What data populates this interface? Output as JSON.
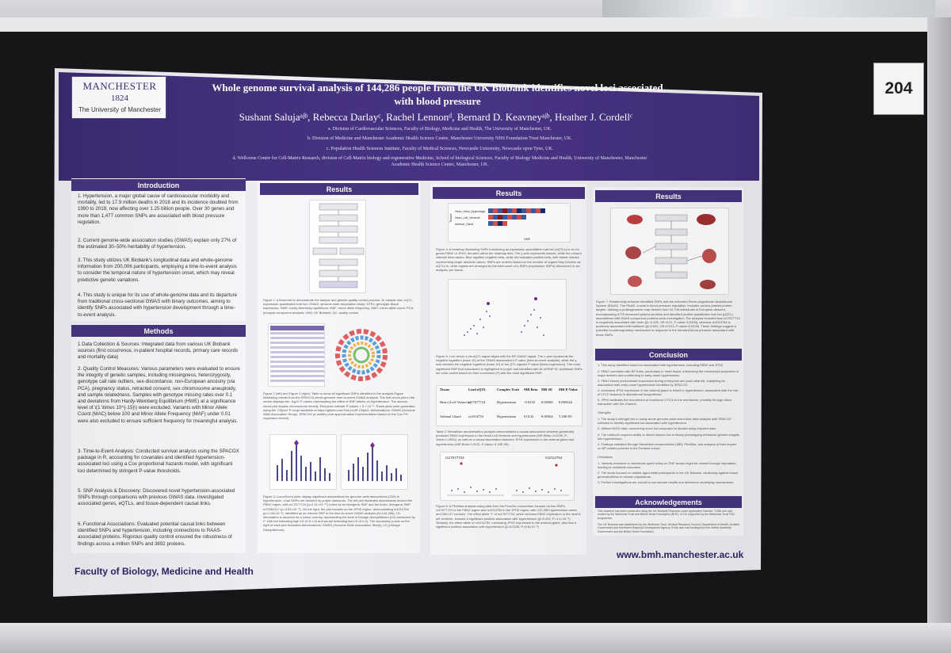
{
  "poster": {
    "logo_name": "MANCHESTER",
    "logo_year": "1824",
    "logo_university": "The University of Manchester",
    "title_line1": "Whole genome survival analysis of 144,286 people from the UK Biobank identifies novel loci associated",
    "title_line2": "with blood pressure",
    "authors": "Sushant Salujaᵃʲᵇ, Rebecca Darlayᶜ, Rachel Lennonᵈ, Bernard D. Keavneyᵃʲᵇ, Heather J. Cordellᶜ",
    "affiliations": [
      "a. Division of Cardiovascular Sciences, Faculty of Biology, Medicine and Health, The University of Manchester, UK.",
      "b. Division of Medicine and Manchester Academic Health Science Centre, Manchester University NHS Foundation Trust Manchester, UK.",
      "c. Population Health Sciences Institute, Faculty of Medical Sciences, Newcastle University, Newcastle upon Tyne, UK.",
      "d. Wellcome Centre for Cell-Matrix Research, division of Cell-Matrix biology and regenerative Medicine, School of biological Sciences, Faculty of Biology Medicine and Health, University of Manchester, Manchester",
      "Academic Health Science Centre, Manchester, UK."
    ],
    "footer": "Faculty of Biology, Medicine and Health",
    "url": "www.bmh.manchester.ac.uk"
  },
  "board_number": "204",
  "sections": {
    "introduction": {
      "heading": "Introduction",
      "paras": [
        "1. Hypertension, a major global cause of cardiovascular morbidity and mortality, led to 17.9 million deaths in 2018 and its incidence doubled from 1990 to 2019, now affecting over 1.25 billion people. Over 30 genes and more than 1,477 common SNPs are associated with blood pressure regulation.",
        "2. Current genome-wide association studies (GWAS) explain only 27% of the estimated 30–50% heritability of hypertension.",
        "3. This study utilizes UK Biobank's longitudinal data and whole-genome information from 200,006 participants, employing a time-to-event analysis to consider the temporal nature of hypertension onset, which may reveal predictive genetic variations.",
        "4. This study is unique for its use of whole-genome data and its departure from traditional cross-sectional GWAS with binary outcomes, aiming to identify SNPs associated with hypertension development through a time-to-event analysis."
      ]
    },
    "methods": {
      "heading": "Methods",
      "paras": [
        "1 Data Collection & Sources: Integrated data from various UK Biobank sources (first occurrence, in-patient hospital records, primary care records and mortality data)",
        "2. Quality Control Measures: Various parameters were evaluated to ensure the integrity of genetic samples, including missingness, heterozygosity, genotype call rate outliers, sex-discordance, non-European ancestry (via PCA), pregnancy status, retracted consent, sex chromosome aneuploidy, and sample relatedness. Samples with genotype missing rates over 0.1 and deviations from Hardy-Weinberg Equilibrium (HWE) at a significance level of \\(1 \\times 10^{-15}\\) were excluded. Variants with Minor Allele Count (MAC) below 100 and Minor Allele Frequency (MAF) under 0.01 were also excluded to ensure sufficient frequency for meaningful analysis.",
        "3. Time-to-Event Analysis: Conducted survival analysis using the SPACOX package in R, accounting for covariates and identified hypertension-associated loci using a Cox proportional hazards model, with significant loci determined by stringent P-value thresholds.",
        "5. SNP Analysis & Discovery: Discovered novel hypertension-associated SNPs through comparisons with previous GWAS data. Investigated associated genes, eQTLs, and tissue-dependent causal links.",
        "6. Functional Associations: Evaluated potential causal links between identified SNPs and hypertension, including connections to RAAS-associated proteins. Rigorous quality control ensured the robustness of findings across a million SNPs and 3892 proteins."
      ]
    },
    "results1": {
      "heading": "Results",
      "caption1": "Figure 1: A flowchart to demonstrate the sample and genetic quality control process. N: sample size; eQTL: expression quantitative trait loci; GWAS: genome-wide association study; GTEx: genotype-tissue expression; HWE: hardy-Weinberg equilibrium; MAF: minor allele frequency; MAC: minor allele count; PCA: principal component analysis; UKB: UK Biobank; QC: quality control.",
      "caption2": "Figure 2 (left) and Figure 2 (right): Table to show all significant SNPs identified in the analysis.Figure illustrating results from the SPACOX whole-genome time-to-event GWAS analysis. The first circos plot in the centre displays the -log10 P-values representing the effect of SNP alleles on hypertension. The second circos plot depicts chromosome density. Red plots indicate P-values < 5 × 10⁻⁸. These plots were generated using the 'CMplot' R script available at https://github.com/YinLiLin/R-CMplot. Abbreviations: GWAS (Genome Wide Association Study), SPACOX (a saddle point approximation implementation based on the Cox PH regression model).",
      "caption3": "Figure 3: LocusZoom plots display significant associations for genome-wide associations (GW) in hypertension. Lead SNPs are denoted by purple diamonds. The left plot illustrates associations around the FBN2 region, with rs17677724 (p=2.41×10⁻¹⁰) noted as an intergenic SNP and the index. Intergenic SNP rs73350117 (p=2.82×10⁻⁹). On the right, the plot focuses on the JPH2 region, demonstrating rs1014754 (p=1.28×10⁻⁸), identified as an intronic SNP in the time-to-event GWAS analysis (N=144,286). LD information is depicted as a colour overlay, representing the level of linkage disequilibrium (LD) measured by r², with red indicating high LD (0.8-1.0) and purple indicating low LD (0-0.2). The secondary y-axis on the right of each plot illustrates Abbreviations: GWAS (Genome Wide Association Study), LD (Linkage Disequilibrium)."
    },
    "results2": {
      "heading": "Results",
      "heat_rows": [
        "Heart_Atrial_Appendage",
        "Heart_Left_Ventricle",
        "Adrenal_Gland"
      ],
      "heat_ylabel": "Tissue",
      "heat_xlabel": "SNP",
      "caption4": "Figure 4: A heatmap illustrating SNPs functioning as expression-quantitative trait loci (eQTLs) in cis for genes FBN2 or JPH2, denoted within the heatmap tiles. The y-axis represents tissues, while the colours indicate beta values. Blue signifies negative beta, while red indicates positive beta, with darker shades representing larger absolute values. SNPs are ordered based on the number of organs they function as eQTLs in, while organs are arranged by the total count of e-SNPs (expression SNPs) discovered in our analysis, per tissue.",
      "caption5": "Figure 5: Loci where a cis-eQTL signal aligns with the BP-GWAS signal. The x-axis represents the negative logarithm (base 10) of the GWAS association's P-value (time-to-event analysis), while the y-axis denotes the negative logarithm (base 10) of the QTL signal's P-value (linear regression). The most significant SNP that colocalizes is highlighted in purple and identified with its refSNP ID. Additional SNPs are color-coded based on their correlation (r²) with the most significant SNP.",
      "table_headers": [
        "Tissue",
        "Lead eQTL",
        "Complex Trait",
        "MR Beta",
        "MR SE",
        "MR P-Value"
      ],
      "table_rows": [
        [
          "Heart (Left-Ventricle)",
          "rs17677724",
          "Hypertension",
          "-0.0239",
          "0.00369",
          "0.000344"
        ],
        [
          "Adrenal Gland",
          "rs1014754",
          "Hypertension",
          "0.0142",
          "0.00364",
          "3.16E-05"
        ]
      ],
      "caption_table": "Table 2: Mendelian randomisation analysis demonstrated a causal association between genetically predicted FBN2 expression in the Heart Left Ventricle and hypertension (MR Beta=-0.0239, P-Value=0.0003), as well as a causal association between JPH2 expression in the adrenal gland and hypertension (MR Beta=0.0142, P-Value=3.16E-05).",
      "snp_label1": "rs17677724",
      "snp_label2": "rs1014754",
      "caption6": "Figure 6: A PheWas analysis using data from the FinnGen consortium focused on two SNPs, rs17677724 in the FBN2 region and rs1014754 in the JPH2 region, with 122,996 hypertension cases and 289,117 controls. The effect allele 'T' of rs17677724, which reduces FBN2 expression in the heart's left ventricle, showed a significant positive association with hypertension (β=0.492, P=1.4×10⁻⁸). Similarly, the effect allele of rs1014754, increasing JPH2 expression in the adrenal gland, also had a significant positive association with hypertension (β=0.0225, P=8.6×10⁻⁸)."
    },
    "results3": {
      "heading": "Results",
      "caption7": "Figure 7: Relationship between identified SNPs and the extended Renin-Angiotensin-Aldosterone System (RAAS). The RAAS, crucial in blood pressure regulation, includes various plasma protein targets. Utilising a proteogenomic map derived from 10,708 individuals of European descent, encompassing 4775 measured plasma proteins and identified protein quantitative trait loci (pQTL), associations with RAAS component proteins were investigated. The analysis revealed that rs17677724 is negatively associated with renin (β=-0.026, SE=0.01, P-value=0.0430), whereas rs1014754 is positively associated with kallikrein (β=0.031, SE=0.013, P-value=0.0225). These findings suggest a potential counterregulatory mechanism in response to the elevated blood pressure associated with these SNPs.",
      "conclusion_heading": "Conclusion",
      "conclusion_items": [
        "1. This study identified novel loci associated with hypertension, including FBN2 and JPH2.",
        "2. FBN2 correlates with BP traits, particularly in heart tissue, influencing the mechanical properties of major arteries and contributing to early-onset hypertension.",
        "3. FBN2 shows predominant expression during embryonic and post-natal life, explaining its association with early-onset hypertension identified by SPACOX.",
        "4. Increased JPH2 expression in the adrenal gland is linked to hypertension, associated with the role of LTCC isoforms in aldosterone biosynthesis.",
        "5. JPH2 facilitates the recruitment of functional LTCCs to the membrane, possibly through direct interaction with the channel."
      ],
      "strengths_heading": "Strengths",
      "strengths": [
        "1. The study's strength lies in using whole genome-wide event time data analysis with SPACOX software to identify significant loci associated with hypertension.",
        "2. Utilised WGS data, uncovering novel loci compared to studies using imputed data.",
        "3. The method's superior ability to detect missed loci in binary phenotyping enhances genetic insights into hypertension.",
        "4. Findings validated through Mendelian randomization (MR), PheWas, and analysis of their impact on BP-related proteins in the Fenland cohort."
      ],
      "limitations_heading": "Limitations",
      "limitations": [
        "1. Variants exclusive to individuals typed solely on SNP arrays might be missed through imputation, leading to unreliable outcomes.",
        "2. The study focused on middle-aged white participants in the UK Biobank, cautioning against broad generalizations to diverse populations.",
        "3. Further investigations are crucial to corroborate results and determine underlying mechanisms."
      ],
      "ack_heading": "Acknowledgements",
      "ack_text": "This research has been conducted using the UK Biobank Resource under Application Number 71386 and was funded by the Wellcome Trust and British Heart Foundation (BHF). S.S is supported by the Wellcome Trust PhD programme.",
      "ack_text2": "The UK Biobank was established by the Wellcome Trust, Medical Research Council, Department of Health, Scottish Government and Northwest Regional Development Agency. It has also had funding from the Welsh Assembly Government and the British Heart Foundation."
    }
  },
  "colors": {
    "header_purple": "#47347f",
    "board": "#161618",
    "poster_bg": "#eeedf3"
  }
}
